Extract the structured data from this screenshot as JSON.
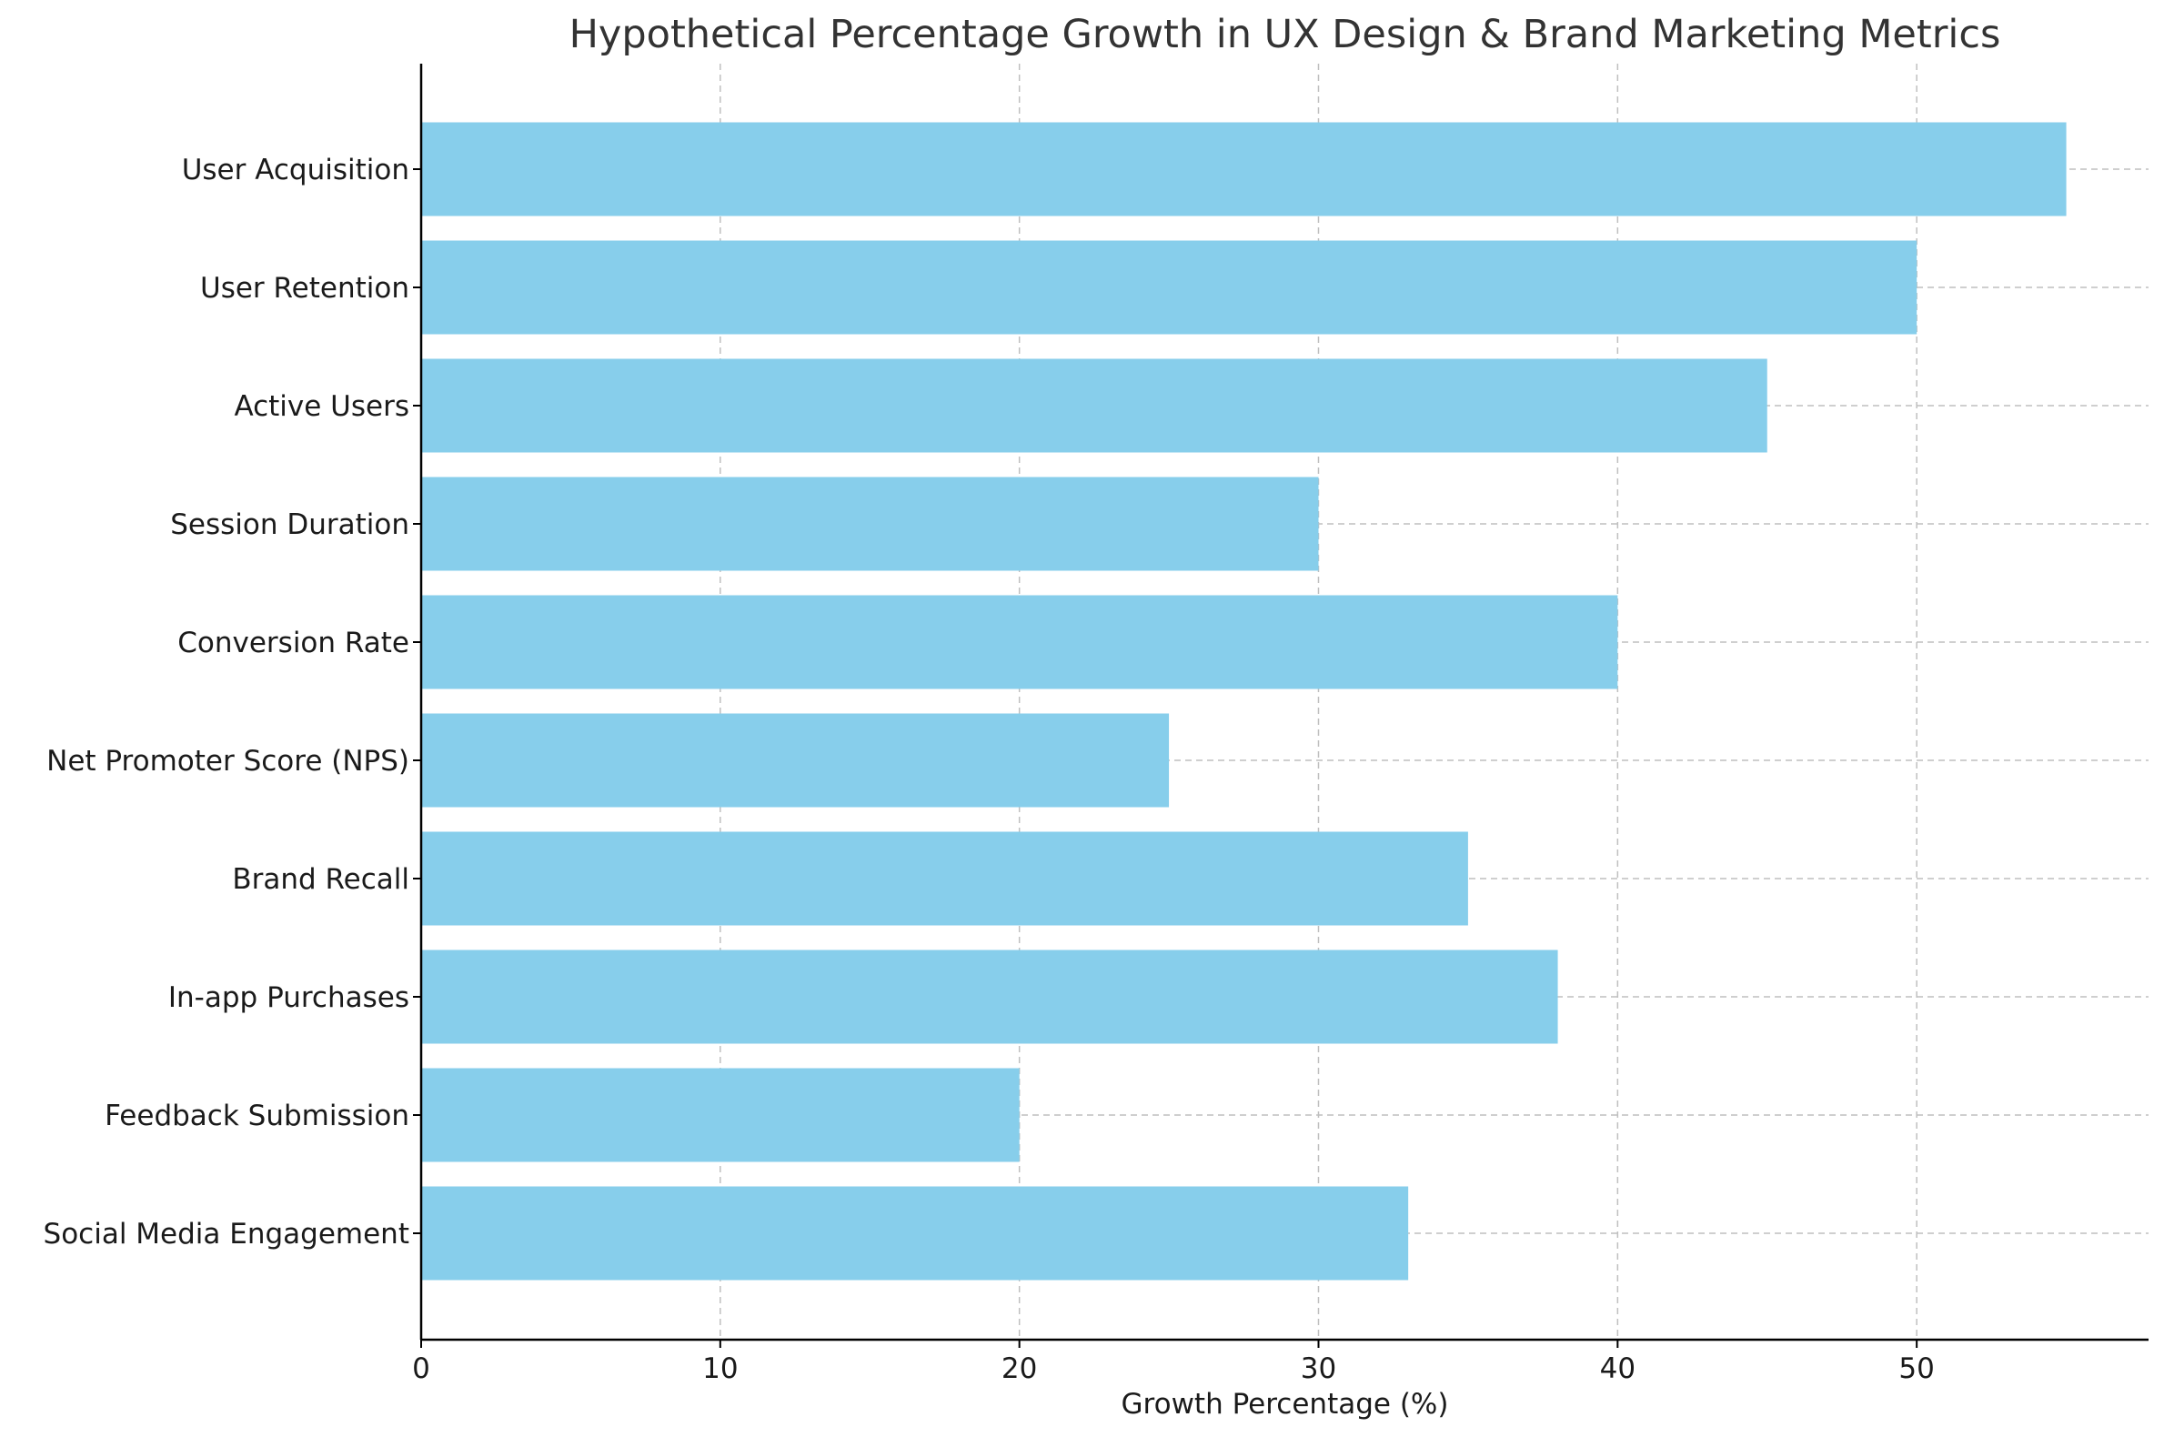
{
  "chart_data": {
    "type": "bar",
    "orientation": "horizontal",
    "title": "Hypothetical Percentage Growth in UX Design & Brand Marketing Metrics",
    "xlabel": "Growth Percentage (%)",
    "ylabel": "",
    "categories": [
      "User Acquisition",
      "User Retention",
      "Active Users",
      "Session Duration",
      "Conversion Rate",
      "Net Promoter Score (NPS)",
      "Brand Recall",
      "In-app Purchases",
      "Feedback Submission",
      "Social Media Engagement"
    ],
    "values": [
      55,
      50,
      45,
      30,
      40,
      25,
      35,
      38,
      20,
      33
    ],
    "xlim": [
      0,
      57.75
    ],
    "xticks": [
      0,
      10,
      20,
      30,
      40,
      50
    ],
    "grid": true,
    "bar_color": "#87ceeb"
  }
}
